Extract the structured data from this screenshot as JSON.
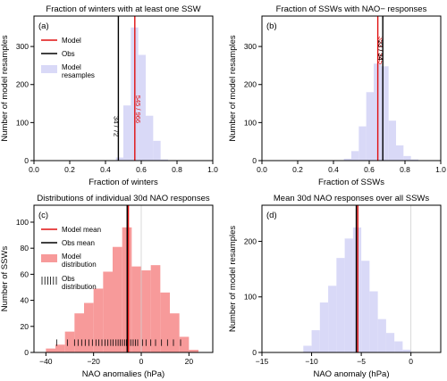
{
  "chart_data": [
    {
      "type": "bar",
      "panel": "(a)",
      "title": "Fraction of winters with at least one SSW",
      "xlabel": "Fraction of winters",
      "ylabel": "Number of model resamples",
      "xlim": [
        0,
        1
      ],
      "ylim": [
        0,
        380
      ],
      "xticks": [
        0,
        0.2,
        0.4,
        0.6,
        0.8,
        1.0
      ],
      "xtick_labels": [
        "0.0",
        "0.2",
        "0.4",
        "0.6",
        "0.8",
        "1.0"
      ],
      "yticks": [
        0,
        100,
        200,
        300
      ],
      "ytick_labels": [
        "0",
        "100",
        "200",
        "300"
      ],
      "grid": false,
      "legend_position": "upper-left",
      "hist": {
        "name": "Model resamples",
        "color": "#d9d9f7",
        "bin_width": 0.0417,
        "bins": [
          {
            "x0": 0.4583,
            "x1": 0.5,
            "count": 8
          },
          {
            "x0": 0.5,
            "x1": 0.5417,
            "count": 145
          },
          {
            "x0": 0.5417,
            "x1": 0.5833,
            "count": 350
          },
          {
            "x0": 0.5833,
            "x1": 0.625,
            "count": 278
          },
          {
            "x0": 0.625,
            "x1": 0.6667,
            "count": 118
          },
          {
            "x0": 0.6667,
            "x1": 0.7083,
            "count": 52
          },
          {
            "x0": 0.7083,
            "x1": 0.75,
            "count": 3
          }
        ]
      },
      "vlines": [
        {
          "name": "Model",
          "x": 0.564,
          "color": "#e01010",
          "label": "545 / 966",
          "label_y": 135
        },
        {
          "name": "Obs",
          "x": 0.472,
          "color": "#000000",
          "label": "34 / 72",
          "label_y": 90
        }
      ],
      "legend": [
        {
          "label": "Model",
          "kind": "line",
          "color": "#e01010"
        },
        {
          "label": "Obs",
          "kind": "line",
          "color": "#000000"
        },
        {
          "label": "Model\nresamples",
          "kind": "patch",
          "color": "#d9d9f7"
        }
      ]
    },
    {
      "type": "bar",
      "panel": "(b)",
      "title": "Fraction of SSWs with NAO− responses",
      "xlabel": "Fraction of SSWs",
      "ylabel": "Number of model resamples",
      "xlim": [
        0,
        1
      ],
      "ylim": [
        0,
        380
      ],
      "xticks": [
        0,
        0.2,
        0.4,
        0.6,
        0.8,
        1.0
      ],
      "xtick_labels": [
        "0.0",
        "0.2",
        "0.4",
        "0.6",
        "0.8",
        "1.0"
      ],
      "yticks": [
        0,
        100,
        200,
        300
      ],
      "ytick_labels": [
        "0",
        "100",
        "200",
        "300"
      ],
      "grid": false,
      "hist": {
        "name": "Model resamples",
        "color": "#d9d9f7",
        "bin_width": 0.0417,
        "bins": [
          {
            "x0": 0.4583,
            "x1": 0.5,
            "count": 5
          },
          {
            "x0": 0.5,
            "x1": 0.5417,
            "count": 25
          },
          {
            "x0": 0.5417,
            "x1": 0.5833,
            "count": 90
          },
          {
            "x0": 0.5833,
            "x1": 0.625,
            "count": 180
          },
          {
            "x0": 0.625,
            "x1": 0.6667,
            "count": 255
          },
          {
            "x0": 0.6667,
            "x1": 0.7083,
            "count": 248
          },
          {
            "x0": 0.7083,
            "x1": 0.75,
            "count": 105
          },
          {
            "x0": 0.75,
            "x1": 0.7917,
            "count": 40
          },
          {
            "x0": 0.7917,
            "x1": 0.8333,
            "count": 12
          },
          {
            "x0": 0.8333,
            "x1": 0.875,
            "count": 3
          }
        ]
      },
      "vlines": [
        {
          "name": "Model",
          "x": 0.648,
          "color": "#e01010",
          "label": "353 / 545",
          "label_y": 290
        },
        {
          "name": "Obs",
          "x": 0.676,
          "color": "#000000",
          "label": "23 / 34",
          "label_y": 290
        }
      ]
    },
    {
      "type": "bar",
      "panel": "(c)",
      "title": "Distributions of individual 30d NAO responses",
      "xlabel": "NAO anomalies (hPa)",
      "ylabel": "Number of SSWs",
      "xlim": [
        -45,
        30
      ],
      "ylim": [
        0,
        113
      ],
      "xticks": [
        -40,
        -20,
        0,
        20
      ],
      "xtick_labels": [
        "−40",
        "−20",
        "0",
        "20"
      ],
      "yticks": [
        0,
        20,
        40,
        60,
        80,
        100
      ],
      "ytick_labels": [
        "0",
        "20",
        "40",
        "60",
        "80",
        "100"
      ],
      "grid": false,
      "legend_position": "upper-left",
      "zero_line": 0,
      "hist": {
        "name": "Model distribution",
        "color": "#f79a9a",
        "bin_width": 4,
        "bins": [
          {
            "x0": -40,
            "x1": -36,
            "count": 3
          },
          {
            "x0": -36,
            "x1": -32,
            "count": 6
          },
          {
            "x0": -32,
            "x1": -28,
            "count": 16
          },
          {
            "x0": -28,
            "x1": -24,
            "count": 30
          },
          {
            "x0": -24,
            "x1": -20,
            "count": 38
          },
          {
            "x0": -20,
            "x1": -16,
            "count": 49
          },
          {
            "x0": -16,
            "x1": -12,
            "count": 62
          },
          {
            "x0": -12,
            "x1": -8,
            "count": 81
          },
          {
            "x0": -8,
            "x1": -4,
            "count": 96
          },
          {
            "x0": -4,
            "x1": 0,
            "count": 66
          },
          {
            "x0": 0,
            "x1": 4,
            "count": 63
          },
          {
            "x0": 4,
            "x1": 8,
            "count": 67
          },
          {
            "x0": 8,
            "x1": 12,
            "count": 46
          },
          {
            "x0": 12,
            "x1": 16,
            "count": 30
          },
          {
            "x0": 16,
            "x1": 20,
            "count": 12
          },
          {
            "x0": 20,
            "x1": 24,
            "count": 2
          }
        ]
      },
      "vlines": [
        {
          "name": "Model mean",
          "x": -5.4,
          "color": "#e01010"
        },
        {
          "name": "Obs mean",
          "x": -5.9,
          "color": "#000000"
        }
      ],
      "rug": {
        "name": "Obs distribution",
        "y0": 5,
        "y1": 10,
        "x": [
          -35.5,
          -31,
          -28,
          -26.5,
          -25,
          -23.5,
          -22,
          -20.5,
          -19,
          -17.8,
          -16.5,
          -15.2,
          -14,
          -12.8,
          -11.8,
          -10.6,
          -9.7,
          -8.8,
          -7.9,
          -7,
          -6.2,
          -5.3,
          -4.4,
          -3.4,
          -2.4,
          -1.5,
          0.5,
          2,
          4,
          6,
          8.5,
          11,
          13.5,
          16.5
        ]
      },
      "legend": [
        {
          "label": "Model mean",
          "kind": "line",
          "color": "#e01010"
        },
        {
          "label": "Obs mean",
          "kind": "line",
          "color": "#000000"
        },
        {
          "label": "Model\ndistribution",
          "kind": "patch",
          "color": "#f79a9a"
        },
        {
          "label": "Obs\ndistribution",
          "kind": "rug",
          "color": "#000000"
        }
      ]
    },
    {
      "type": "bar",
      "panel": "(d)",
      "title": "Mean 30d NAO responses over all SSWs",
      "xlabel": "NAO anomaly (hPa)",
      "ylabel": "Number of model resamples",
      "xlim": [
        -15,
        3
      ],
      "ylim": [
        0,
        265
      ],
      "xticks": [
        -15,
        -10,
        -5,
        0
      ],
      "xtick_labels": [
        "−15",
        "−10",
        "−5",
        "0"
      ],
      "yticks": [
        0,
        100,
        200
      ],
      "ytick_labels": [
        "0",
        "100",
        "200"
      ],
      "grid": false,
      "zero_line": 0,
      "hist": {
        "name": "Model resamples",
        "color": "#d9d9f7",
        "bin_width": 0.8333,
        "bins": [
          {
            "x0": -10.8333,
            "x1": -10.0,
            "count": 12
          },
          {
            "x0": -10.0,
            "x1": -9.1667,
            "count": 40
          },
          {
            "x0": -9.1667,
            "x1": -8.3333,
            "count": 90
          },
          {
            "x0": -8.3333,
            "x1": -7.5,
            "count": 120
          },
          {
            "x0": -7.5,
            "x1": -6.6667,
            "count": 170
          },
          {
            "x0": -6.6667,
            "x1": -5.8333,
            "count": 205
          },
          {
            "x0": -5.8333,
            "x1": -5.0,
            "count": 225
          },
          {
            "x0": -5.0,
            "x1": -4.1667,
            "count": 165
          },
          {
            "x0": -4.1667,
            "x1": -3.3333,
            "count": 110
          },
          {
            "x0": -3.3333,
            "x1": -2.5,
            "count": 60
          },
          {
            "x0": -2.5,
            "x1": -1.6667,
            "count": 35
          },
          {
            "x0": -1.6667,
            "x1": -0.8333,
            "count": 20
          },
          {
            "x0": -0.8333,
            "x1": 0.0,
            "count": 5
          }
        ]
      },
      "vlines": [
        {
          "name": "Model",
          "x": -5.35,
          "color": "#e01010"
        },
        {
          "name": "Obs",
          "x": -5.5,
          "color": "#000000"
        }
      ]
    }
  ]
}
